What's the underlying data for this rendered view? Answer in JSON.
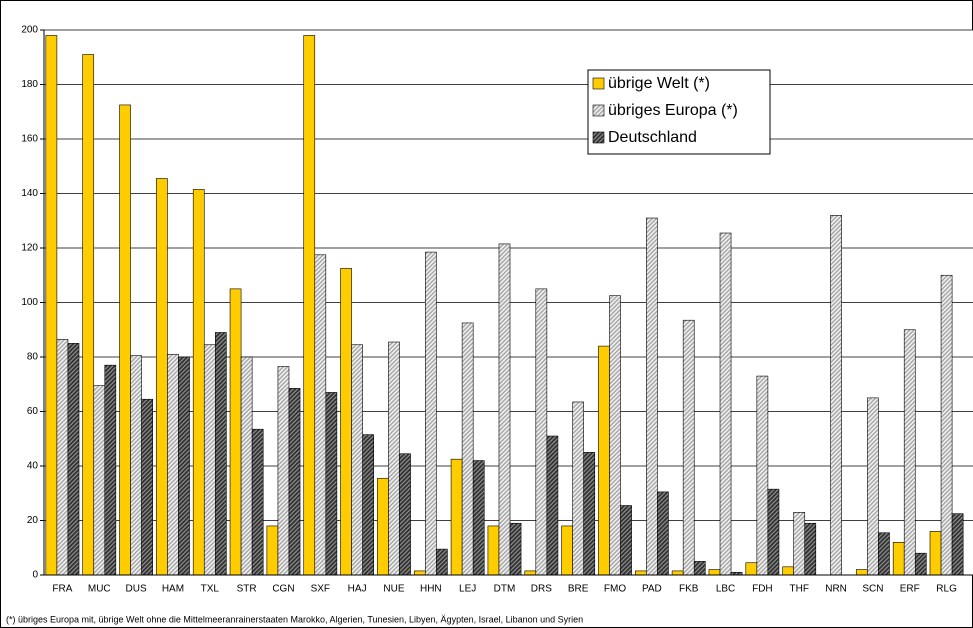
{
  "chart_data": {
    "type": "bar",
    "categories": [
      "FRA",
      "MUC",
      "DUS",
      "HAM",
      "TXL",
      "STR",
      "CGN",
      "SXF",
      "HAJ",
      "NUE",
      "HHN",
      "LEJ",
      "DTM",
      "DRS",
      "BRE",
      "FMO",
      "PAD",
      "FKB",
      "LBC",
      "FDH",
      "THF",
      "NRN",
      "SCN",
      "ERF",
      "RLG"
    ],
    "series": [
      {
        "name": "übrige Welt (*)",
        "color": "#ffcc00",
        "values": [
          198,
          191,
          172.5,
          145.5,
          141.5,
          105,
          18,
          198,
          112.5,
          35.5,
          1.5,
          42.5,
          18,
          1.5,
          18,
          84,
          1.5,
          1.5,
          2,
          4.5,
          3,
          0,
          2,
          12,
          16
        ]
      },
      {
        "name": "übriges Europa (*)",
        "color": "#a0a0a0",
        "values": [
          86.5,
          69.5,
          80.5,
          81,
          84.5,
          80,
          76.5,
          117.5,
          84.5,
          85.5,
          118.5,
          92.5,
          121.5,
          105,
          63.5,
          102.5,
          131,
          93.5,
          125.5,
          73,
          23,
          132,
          65,
          90,
          110
        ]
      },
      {
        "name": "Deutschland",
        "color": "#303030",
        "values": [
          85,
          77,
          64.5,
          80,
          89,
          53.5,
          68.5,
          67,
          51.5,
          44.5,
          9.5,
          42,
          19,
          51,
          45,
          25.5,
          30.5,
          5,
          1,
          31.5,
          19,
          0,
          15.5,
          8,
          22.5
        ]
      }
    ],
    "ylim": [
      0,
      200
    ],
    "yticks": [
      0,
      20,
      40,
      60,
      80,
      100,
      120,
      140,
      160,
      180,
      200
    ],
    "grid": true,
    "note": "(*) übriges Europa mit, übrige Welt ohne die Mittelmeeranrainerstaaten Marokko, Algerien, Tunesien, Libyen, Ägypten, Israel, Libanon und Syrien"
  }
}
